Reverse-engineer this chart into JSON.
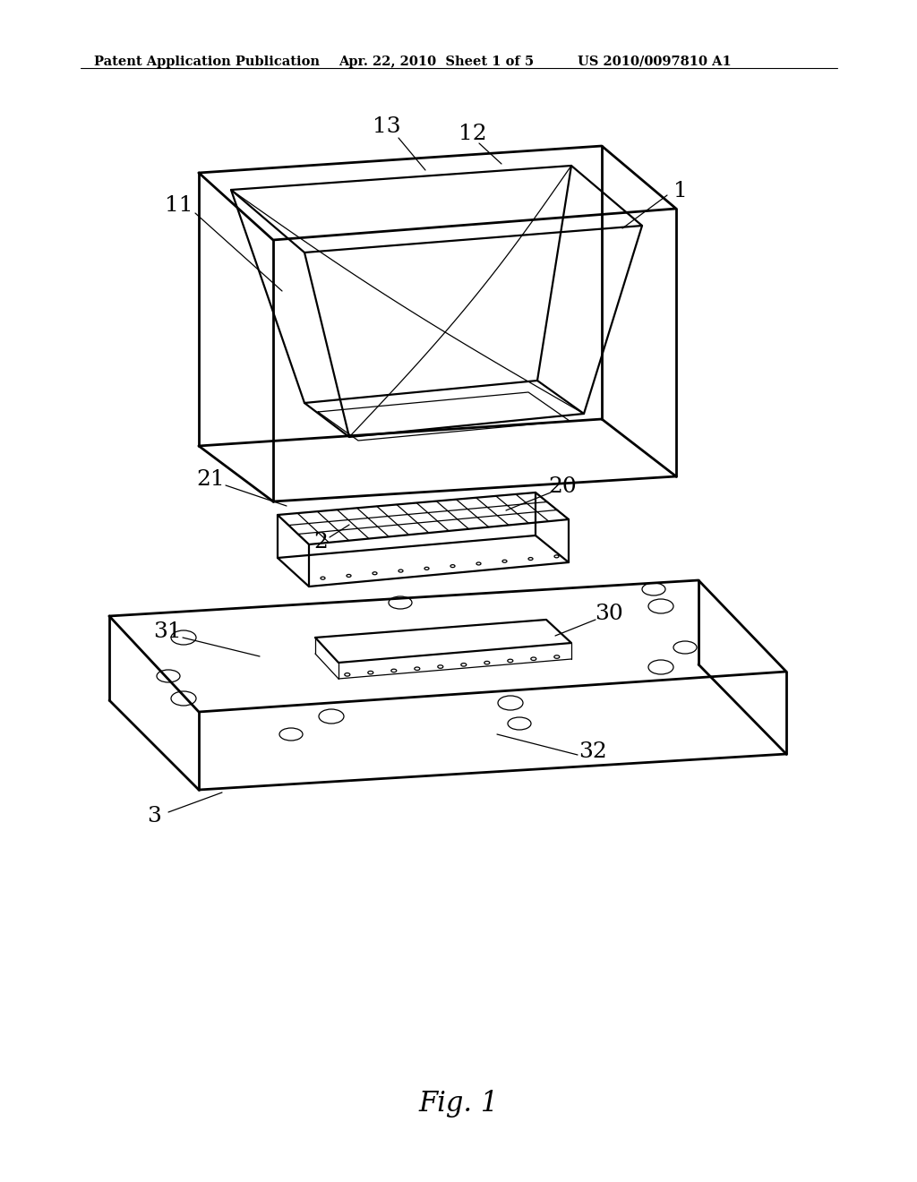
{
  "bg_color": "#ffffff",
  "header_left": "Patent Application Publication",
  "header_mid": "Apr. 22, 2010  Sheet 1 of 5",
  "header_right": "US 2010/0097810 A1",
  "caption": "Fig. 1",
  "lw_main": 1.6,
  "lw_thin": 0.9,
  "lw_thick": 2.0
}
